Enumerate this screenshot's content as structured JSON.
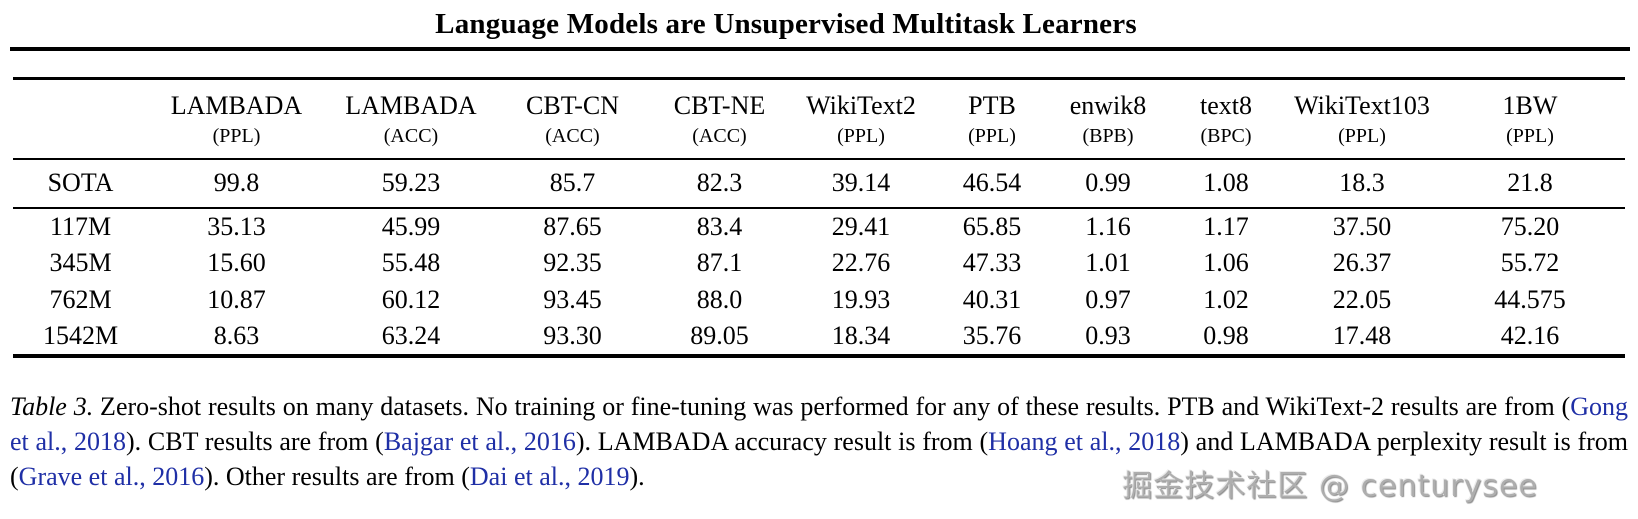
{
  "header": {
    "title": "Language Models are Unsupervised Multitask Learners"
  },
  "table": {
    "columns": [
      {
        "name": "LAMBADA",
        "metric": "(PPL)"
      },
      {
        "name": "LAMBADA",
        "metric": "(ACC)"
      },
      {
        "name": "CBT-CN",
        "metric": "(ACC)"
      },
      {
        "name": "CBT-NE",
        "metric": "(ACC)"
      },
      {
        "name": "WikiText2",
        "metric": "(PPL)"
      },
      {
        "name": "PTB",
        "metric": "(PPL)"
      },
      {
        "name": "enwik8",
        "metric": "(BPB)"
      },
      {
        "name": "text8",
        "metric": "(BPC)"
      },
      {
        "name": "WikiText103",
        "metric": "(PPL)"
      },
      {
        "name": "1BW",
        "metric": "(PPL)"
      }
    ],
    "sota_row": {
      "label": "SOTA",
      "cells": [
        {
          "v": "99.8",
          "b": false
        },
        {
          "v": "59.23",
          "b": false
        },
        {
          "v": "85.7",
          "b": false
        },
        {
          "v": "82.3",
          "b": false
        },
        {
          "v": "39.14",
          "b": false
        },
        {
          "v": "46.54",
          "b": false
        },
        {
          "v": "0.99",
          "b": false
        },
        {
          "v": "1.08",
          "b": false
        },
        {
          "v": "18.3",
          "b": false
        },
        {
          "v": "21.8",
          "b": true
        }
      ]
    },
    "model_rows": [
      {
        "label": "117M",
        "cells": [
          {
            "v": "35.13",
            "b": true
          },
          {
            "v": "45.99",
            "b": false
          },
          {
            "v": "87.65",
            "b": true
          },
          {
            "v": "83.4",
            "b": true
          },
          {
            "v": "29.41",
            "b": true
          },
          {
            "v": "65.85",
            "b": false
          },
          {
            "v": "1.16",
            "b": false
          },
          {
            "v": "1.17",
            "b": false
          },
          {
            "v": "37.50",
            "b": false
          },
          {
            "v": "75.20",
            "b": false
          }
        ]
      },
      {
        "label": "345M",
        "cells": [
          {
            "v": "15.60",
            "b": true
          },
          {
            "v": "55.48",
            "b": false
          },
          {
            "v": "92.35",
            "b": true
          },
          {
            "v": "87.1",
            "b": true
          },
          {
            "v": "22.76",
            "b": true
          },
          {
            "v": "47.33",
            "b": false
          },
          {
            "v": "1.01",
            "b": false
          },
          {
            "v": "1.06",
            "b": true
          },
          {
            "v": "26.37",
            "b": false
          },
          {
            "v": "55.72",
            "b": false
          }
        ]
      },
      {
        "label": "762M",
        "cells": [
          {
            "v": "10.87",
            "b": true
          },
          {
            "v": "60.12",
            "b": true
          },
          {
            "v": "93.45",
            "b": true
          },
          {
            "v": "88.0",
            "b": true
          },
          {
            "v": "19.93",
            "b": true
          },
          {
            "v": "40.31",
            "b": true
          },
          {
            "v": "0.97",
            "b": true
          },
          {
            "v": "1.02",
            "b": true
          },
          {
            "v": "22.05",
            "b": false
          },
          {
            "v": "44.575",
            "b": false
          }
        ]
      },
      {
        "label": "1542M",
        "cells": [
          {
            "v": "8.63",
            "b": true
          },
          {
            "v": "63.24",
            "b": true
          },
          {
            "v": "93.30",
            "b": true
          },
          {
            "v": "89.05",
            "b": true
          },
          {
            "v": "18.34",
            "b": true
          },
          {
            "v": "35.76",
            "b": true
          },
          {
            "v": "0.93",
            "b": true
          },
          {
            "v": "0.98",
            "b": true
          },
          {
            "v": "17.48",
            "b": true
          },
          {
            "v": "42.16",
            "b": false
          }
        ]
      }
    ]
  },
  "caption": {
    "segments": [
      {
        "t": "Table 3.",
        "style": "italic"
      },
      {
        "t": " Zero-shot results on many datasets.  No training or fine-tuning was performed for any of these results.  PTB and WikiText-2 results are from (",
        "style": "plain"
      },
      {
        "t": "Gong et al., 2018",
        "style": "cite"
      },
      {
        "t": "). CBT results are from (",
        "style": "plain"
      },
      {
        "t": "Bajgar et al., 2016",
        "style": "cite"
      },
      {
        "t": "). LAMBADA accuracy result is from (",
        "style": "plain"
      },
      {
        "t": "Hoang et al., 2018",
        "style": "cite"
      },
      {
        "t": ") and LAMBADA perplexity result is from (",
        "style": "plain"
      },
      {
        "t": "Grave et al., 2016",
        "style": "cite"
      },
      {
        "t": "). Other results are from (",
        "style": "plain"
      },
      {
        "t": "Dai et al., 2019",
        "style": "cite"
      },
      {
        "t": ").",
        "style": "plain"
      }
    ]
  },
  "watermark": {
    "text": "掘金技术社区 @ centurysee"
  },
  "colors": {
    "citation_blue": "#1f2fa6",
    "text_black": "#000000",
    "watermark_gray": "#aeaeae",
    "background": "#ffffff"
  }
}
